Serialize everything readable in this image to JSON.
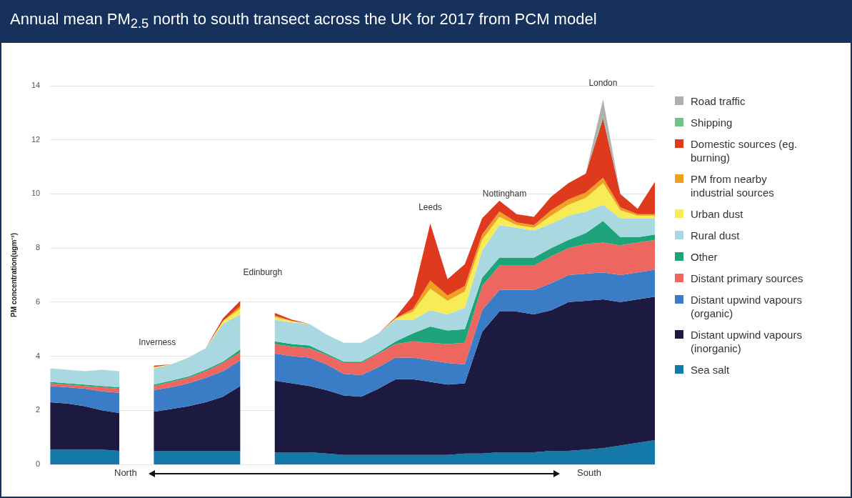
{
  "chart_data": {
    "type": "area",
    "title": "Annual mean PM$_{2.5}$ north to south transect across the UK for 2017 from PCM model",
    "ylabel": "PM concentration(ugm⁻³)",
    "categories": [
      null,
      null,
      null,
      null,
      null,
      null,
      null,
      null,
      null,
      null,
      null,
      null,
      null,
      null,
      null,
      null,
      null,
      null,
      null,
      null,
      null,
      null,
      null,
      null,
      null,
      null,
      null,
      null,
      null,
      null,
      null,
      null,
      null,
      null,
      null,
      null
    ],
    "stacked": true,
    "ylim": [
      0,
      14
    ],
    "yticks": [
      0,
      2,
      4,
      6,
      8,
      10,
      12,
      14
    ],
    "grid": "y",
    "tick_labels": "y",
    "legend": "right",
    "series": [
      {
        "name": "Sea salt",
        "color": "#1478a8",
        "values": [
          0.55,
          0.55,
          0.55,
          0.55,
          0.5,
          null,
          0.5,
          0.5,
          0.5,
          0.5,
          0.5,
          0.5,
          null,
          0.45,
          0.45,
          0.45,
          0.4,
          0.35,
          0.35,
          0.35,
          0.35,
          0.35,
          0.35,
          0.35,
          0.4,
          0.4,
          0.45,
          0.45,
          0.45,
          0.5,
          0.5,
          0.55,
          0.6,
          0.7,
          0.8,
          0.9
        ]
      },
      {
        "name": "Distant upwind vapours (inorganic)",
        "color": "#1c1a40",
        "values": [
          1.75,
          1.7,
          1.6,
          1.45,
          1.4,
          null,
          1.45,
          1.55,
          1.65,
          1.8,
          2.0,
          2.4,
          null,
          2.65,
          2.55,
          2.45,
          2.35,
          2.2,
          2.15,
          2.45,
          2.8,
          2.8,
          2.7,
          2.6,
          2.6,
          4.5,
          5.2,
          5.2,
          5.1,
          5.2,
          5.5,
          5.5,
          5.5,
          5.3,
          5.3,
          5.3
        ]
      },
      {
        "name": "Distant upwind vapours (organic)",
        "color": "#3a7cc6",
        "values": [
          0.6,
          0.6,
          0.65,
          0.7,
          0.75,
          null,
          0.8,
          0.8,
          0.85,
          0.9,
          0.95,
          0.95,
          null,
          1.0,
          1.0,
          1.05,
          0.95,
          0.8,
          0.8,
          0.8,
          0.8,
          0.8,
          0.8,
          0.8,
          0.7,
          0.8,
          0.8,
          0.8,
          0.9,
          1.0,
          1.0,
          1.0,
          1.0,
          1.0,
          1.0,
          1.0
        ]
      },
      {
        "name": "Distant primary sources",
        "color": "#ee6660",
        "values": [
          0.1,
          0.1,
          0.1,
          0.15,
          0.15,
          null,
          0.15,
          0.2,
          0.2,
          0.25,
          0.3,
          0.3,
          null,
          0.35,
          0.35,
          0.35,
          0.35,
          0.4,
          0.45,
          0.5,
          0.5,
          0.6,
          0.65,
          0.7,
          0.8,
          0.9,
          0.9,
          0.9,
          0.9,
          1.0,
          1.0,
          1.1,
          1.1,
          1.1,
          1.1,
          1.1
        ]
      },
      {
        "name": "Other",
        "color": "#1fa37a",
        "values": [
          0.05,
          0.05,
          0.05,
          0.05,
          0.05,
          null,
          0.05,
          0.05,
          0.05,
          0.05,
          0.05,
          0.1,
          null,
          0.1,
          0.1,
          0.1,
          0.05,
          0.05,
          0.05,
          0.05,
          0.1,
          0.3,
          0.6,
          0.5,
          0.5,
          0.3,
          0.3,
          0.3,
          0.3,
          0.3,
          0.3,
          0.4,
          0.8,
          0.3,
          0.2,
          0.2
        ]
      },
      {
        "name": "Rural dust",
        "color": "#a9d8e0",
        "values": [
          0.5,
          0.5,
          0.5,
          0.6,
          0.6,
          null,
          0.6,
          0.6,
          0.7,
          0.8,
          1.4,
          1.3,
          null,
          0.8,
          0.8,
          0.8,
          0.7,
          0.7,
          0.7,
          0.7,
          0.8,
          0.5,
          0.6,
          0.6,
          0.8,
          1.0,
          1.2,
          1.1,
          1.0,
          0.9,
          0.9,
          0.8,
          0.6,
          0.7,
          0.7,
          0.6
        ]
      },
      {
        "name": "Urban dust",
        "color": "#f7ec55",
        "values": [
          0,
          0,
          0,
          0,
          0,
          null,
          0.05,
          0,
          0,
          0,
          0.1,
          0.2,
          null,
          0.1,
          0.05,
          0,
          0,
          0,
          0,
          0,
          0.05,
          0.3,
          0.8,
          0.5,
          0.6,
          0.4,
          0.3,
          0.1,
          0.1,
          0.3,
          0.4,
          0.5,
          0.8,
          0.3,
          0.1,
          0.1
        ]
      },
      {
        "name": "PM from nearby industrial sources",
        "color": "#f0a020",
        "values": [
          0,
          0,
          0,
          0,
          0,
          null,
          0,
          0,
          0,
          0,
          0,
          0.1,
          null,
          0.05,
          0,
          0,
          0,
          0,
          0,
          0,
          0,
          0.1,
          0.3,
          0.2,
          0.2,
          0.2,
          0.2,
          0.1,
          0.1,
          0.2,
          0.2,
          0.2,
          0.2,
          0.1,
          0.05,
          0.05
        ]
      },
      {
        "name": "Domestic sources (eg. burning)",
        "color": "#e03a1e",
        "values": [
          0,
          0,
          0,
          0,
          0,
          null,
          0.05,
          0,
          0,
          0,
          0.1,
          0.2,
          null,
          0.1,
          0.05,
          0,
          0,
          0,
          0,
          0,
          0.05,
          0.5,
          2.1,
          0.6,
          0.8,
          0.6,
          0.4,
          0.3,
          0.3,
          0.5,
          0.6,
          0.7,
          2.2,
          0.5,
          0.2,
          1.2
        ]
      },
      {
        "name": "Shipping",
        "color": "#6cc48a",
        "values": [
          0,
          0,
          0,
          0,
          0,
          null,
          0,
          0,
          0,
          0,
          0,
          0,
          null,
          0,
          0,
          0,
          0,
          0,
          0,
          0,
          0,
          0,
          0,
          0,
          0,
          0,
          0,
          0,
          0,
          0,
          0,
          0,
          0.1,
          0,
          0,
          0
        ]
      },
      {
        "name": "Road traffic",
        "color": "#b0b0b0",
        "values": [
          0,
          0,
          0,
          0,
          0,
          null,
          0,
          0,
          0,
          0,
          0,
          0,
          null,
          0,
          0,
          0,
          0,
          0,
          0,
          0,
          0,
          0,
          0,
          0,
          0,
          0,
          0,
          0,
          0,
          0,
          0,
          0,
          0.6,
          0,
          0,
          0
        ]
      }
    ],
    "annotations": [
      "Inverness",
      "Edinburgh",
      "Leeds",
      "Nottingham",
      "London",
      "North",
      "South"
    ]
  }
}
